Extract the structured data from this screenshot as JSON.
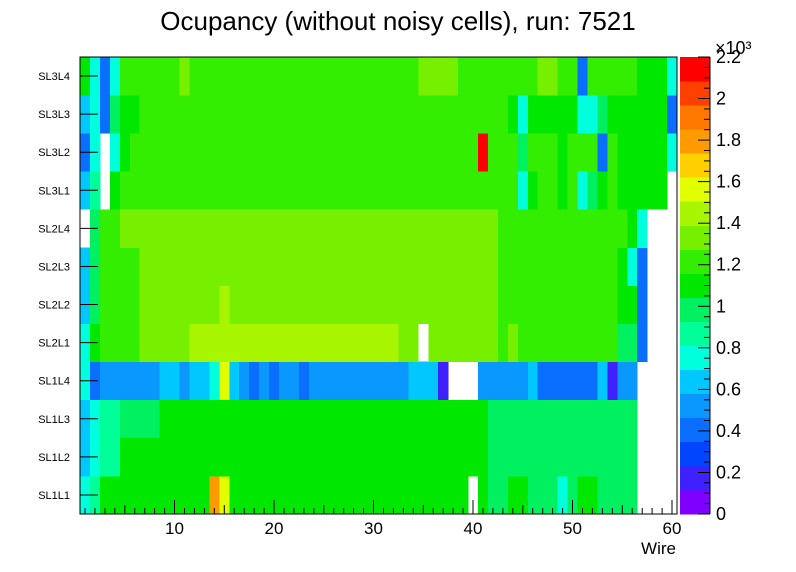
{
  "chart_data": {
    "type": "heatmap",
    "title": "Ocupancy (without noisy cells), run: 7521",
    "xlabel": "Wire",
    "ylabel": "",
    "x_range": [
      0.5,
      60.5
    ],
    "x_ticks": [
      "10",
      "20",
      "30",
      "40",
      "50",
      "60"
    ],
    "x_tick_values": [
      10,
      20,
      30,
      40,
      50,
      60
    ],
    "rows": [
      "SL1L1",
      "SL1L2",
      "SL1L3",
      "SL1L4",
      "SL2L1",
      "SL2L2",
      "SL2L3",
      "SL2L4",
      "SL3L1",
      "SL3L2",
      "SL3L3",
      "SL3L4"
    ],
    "z_range": [
      0,
      2.2
    ],
    "z_multiplier": "×10³",
    "z_ticks": [
      "0",
      "0.2",
      "0.4",
      "0.6",
      "0.8",
      "1",
      "1.2",
      "1.4",
      "1.6",
      "1.8",
      "2",
      "2.2"
    ],
    "z_tick_values": [
      0,
      0.2,
      0.4,
      0.6,
      0.8,
      1.0,
      1.2,
      1.4,
      1.6,
      1.8,
      2.0,
      2.2
    ],
    "palette": [
      "#7f00ff",
      "#3f20ff",
      "#0045ff",
      "#0a6fff",
      "#0a98ff",
      "#00c8ff",
      "#00ffdd",
      "#00ff98",
      "#00f060",
      "#00e800",
      "#33ee00",
      "#77f000",
      "#a8f500",
      "#e1ff00",
      "#ffd000",
      "#ff9b00",
      "#ff7800",
      "#ff4000",
      "#ff0000"
    ],
    "values": [
      [
        0.75,
        0.9,
        1.1,
        1.1,
        1.1,
        1.05,
        1.1,
        1.1,
        1.1,
        1.1,
        1.1,
        1.1,
        1.1,
        1.85,
        1.6,
        1.1,
        1.1,
        1.1,
        1.1,
        1.1,
        1.1,
        1.1,
        1.1,
        1.1,
        1.05,
        1.05,
        1.05,
        1.05,
        1.05,
        1.05,
        1.05,
        1.05,
        1.05,
        1.05,
        1.05,
        1.05,
        1.05,
        1.05,
        1.05,
        null,
        1.05,
        0.95,
        0.95,
        1.05,
        1.05,
        0.95,
        0.95,
        0.95,
        0.8,
        0.95,
        1.05,
        1.05,
        0.95,
        0.95,
        0.95,
        0.95,
        null,
        null,
        null,
        null
      ],
      [
        0.6,
        0.75,
        0.9,
        0.9,
        1.05,
        1.05,
        1.05,
        1.05,
        1.05,
        1.05,
        1.05,
        1.05,
        1.05,
        1.05,
        1.05,
        1.05,
        1.05,
        1.05,
        1.05,
        1.05,
        1.05,
        1.05,
        1.05,
        1.05,
        1.05,
        1.05,
        1.05,
        1.05,
        1.05,
        1.05,
        1.05,
        1.05,
        1.05,
        1.05,
        1.05,
        1.05,
        1.05,
        1.05,
        1.05,
        1.05,
        1.05,
        0.95,
        0.95,
        0.95,
        0.95,
        0.95,
        0.95,
        0.95,
        0.95,
        0.95,
        0.95,
        0.95,
        0.95,
        0.95,
        0.95,
        0.95,
        null,
        null,
        null,
        null
      ],
      [
        0.6,
        0.75,
        0.9,
        0.9,
        0.95,
        0.95,
        0.95,
        0.95,
        1.05,
        1.05,
        1.05,
        1.05,
        1.05,
        1.05,
        1.05,
        1.05,
        1.05,
        1.05,
        1.05,
        1.05,
        1.05,
        1.05,
        1.05,
        1.05,
        1.05,
        1.05,
        1.05,
        1.05,
        1.05,
        1.05,
        1.05,
        1.05,
        1.05,
        1.05,
        1.05,
        1.05,
        1.05,
        1.05,
        1.05,
        1.05,
        1.05,
        0.95,
        0.95,
        0.95,
        0.95,
        0.95,
        0.95,
        0.95,
        0.95,
        0.95,
        0.95,
        0.95,
        0.95,
        0.95,
        0.95,
        0.95,
        null,
        null,
        null,
        null
      ],
      [
        0.7,
        0.45,
        0.55,
        0.55,
        0.55,
        0.55,
        0.55,
        0.55,
        0.6,
        0.6,
        0.55,
        0.6,
        0.6,
        0.75,
        1.6,
        0.6,
        0.55,
        0.45,
        0.55,
        0.45,
        0.55,
        0.55,
        0.45,
        0.55,
        0.55,
        0.55,
        0.55,
        0.55,
        0.55,
        0.55,
        0.55,
        0.55,
        0.55,
        0.6,
        0.6,
        0.6,
        0.15,
        null,
        null,
        null,
        0.55,
        0.55,
        0.55,
        0.55,
        0.55,
        0.6,
        0.45,
        0.45,
        0.45,
        0.45,
        0.45,
        0.45,
        0.6,
        0.15,
        0.55,
        0.5,
        null,
        null,
        null,
        null
      ],
      [
        0.75,
        1.05,
        1.2,
        1.2,
        1.2,
        1.2,
        1.3,
        1.3,
        1.3,
        1.3,
        1.3,
        1.4,
        1.4,
        1.4,
        1.4,
        1.4,
        1.4,
        1.4,
        1.4,
        1.4,
        1.4,
        1.4,
        1.4,
        1.4,
        1.4,
        1.4,
        1.4,
        1.4,
        1.4,
        1.4,
        1.4,
        1.4,
        1.3,
        1.3,
        null,
        1.3,
        1.3,
        1.3,
        1.3,
        1.3,
        1.3,
        1.3,
        1.2,
        1.3,
        1.2,
        1.2,
        1.2,
        1.2,
        1.2,
        1.2,
        1.2,
        1.2,
        1.2,
        1.2,
        0.95,
        0.95,
        0.45,
        null,
        null,
        null
      ],
      [
        0.6,
        0.95,
        1.2,
        1.2,
        1.2,
        1.2,
        1.3,
        1.3,
        1.3,
        1.3,
        1.3,
        1.3,
        1.3,
        1.3,
        1.4,
        1.3,
        1.3,
        1.3,
        1.3,
        1.3,
        1.3,
        1.3,
        1.3,
        1.3,
        1.3,
        1.3,
        1.3,
        1.3,
        1.3,
        1.3,
        1.3,
        1.3,
        1.3,
        1.3,
        1.3,
        1.3,
        1.3,
        1.3,
        1.3,
        1.3,
        1.3,
        1.3,
        1.2,
        1.2,
        1.2,
        1.2,
        1.2,
        1.2,
        1.2,
        1.2,
        1.2,
        1.2,
        1.2,
        1.2,
        1.05,
        1.05,
        0.45,
        null,
        null,
        null
      ],
      [
        0.6,
        0.95,
        1.2,
        1.2,
        1.2,
        1.2,
        1.3,
        1.3,
        1.3,
        1.3,
        1.3,
        1.3,
        1.3,
        1.3,
        1.3,
        1.3,
        1.3,
        1.3,
        1.3,
        1.3,
        1.3,
        1.3,
        1.3,
        1.3,
        1.3,
        1.3,
        1.3,
        1.3,
        1.3,
        1.3,
        1.3,
        1.3,
        1.3,
        1.3,
        1.3,
        1.3,
        1.3,
        1.3,
        1.3,
        1.3,
        1.3,
        1.3,
        1.2,
        1.2,
        1.2,
        1.2,
        1.2,
        1.2,
        1.2,
        1.2,
        1.2,
        1.2,
        1.2,
        1.2,
        1.05,
        0.75,
        0.45,
        null,
        null,
        null
      ],
      [
        null,
        0.95,
        1.2,
        1.2,
        1.3,
        1.3,
        1.3,
        1.3,
        1.3,
        1.3,
        1.3,
        1.3,
        1.3,
        1.3,
        1.3,
        1.3,
        1.3,
        1.3,
        1.3,
        1.3,
        1.3,
        1.3,
        1.3,
        1.3,
        1.3,
        1.3,
        1.3,
        1.3,
        1.3,
        1.3,
        1.3,
        1.3,
        1.3,
        1.3,
        1.3,
        1.3,
        1.3,
        1.3,
        1.3,
        1.3,
        1.3,
        1.3,
        1.2,
        1.2,
        1.2,
        1.2,
        1.2,
        1.2,
        1.2,
        1.2,
        1.2,
        1.2,
        1.2,
        1.2,
        1.2,
        1.05,
        0.75,
        null,
        null,
        null
      ],
      [
        0.6,
        0.9,
        null,
        1.05,
        1.2,
        1.2,
        1.2,
        1.2,
        1.2,
        1.2,
        1.2,
        1.2,
        1.2,
        1.2,
        1.2,
        1.2,
        1.2,
        1.2,
        1.2,
        1.2,
        1.2,
        1.2,
        1.2,
        1.2,
        1.2,
        1.2,
        1.2,
        1.2,
        1.2,
        1.2,
        1.2,
        1.2,
        1.2,
        1.2,
        1.2,
        1.2,
        1.2,
        1.2,
        1.2,
        1.2,
        1.2,
        1.2,
        1.2,
        1.2,
        0.75,
        1.05,
        1.2,
        1.2,
        1.05,
        1.2,
        0.75,
        0.95,
        1.05,
        1.2,
        1.05,
        1.05,
        1.05,
        1.05,
        1.05,
        null
      ],
      [
        0.4,
        0.75,
        null,
        0.75,
        1.05,
        1.2,
        1.2,
        1.2,
        1.2,
        1.2,
        1.2,
        1.2,
        1.2,
        1.2,
        1.2,
        1.2,
        1.2,
        1.2,
        1.2,
        1.2,
        1.2,
        1.2,
        1.2,
        1.2,
        1.2,
        1.2,
        1.2,
        1.2,
        1.2,
        1.2,
        1.2,
        1.2,
        1.2,
        1.2,
        1.2,
        1.2,
        1.2,
        1.2,
        1.2,
        1.2,
        2.2,
        1.2,
        1.2,
        1.2,
        0.95,
        1.2,
        1.2,
        1.2,
        1.05,
        1.2,
        1.2,
        1.2,
        0.45,
        1.2,
        1.05,
        1.05,
        1.05,
        1.05,
        1.05,
        0.75
      ],
      [
        0.6,
        0.75,
        0.4,
        0.95,
        1.05,
        1.05,
        1.2,
        1.2,
        1.2,
        1.2,
        1.2,
        1.2,
        1.2,
        1.2,
        1.2,
        1.2,
        1.2,
        1.2,
        1.2,
        1.2,
        1.2,
        1.2,
        1.2,
        1.2,
        1.2,
        1.2,
        1.2,
        1.2,
        1.2,
        1.2,
        1.2,
        1.2,
        1.2,
        1.2,
        1.2,
        1.2,
        1.2,
        1.2,
        1.2,
        1.2,
        1.2,
        1.2,
        1.2,
        1.05,
        0.75,
        1.05,
        1.05,
        1.05,
        1.05,
        1.05,
        0.8,
        0.8,
        0.95,
        1.05,
        1.05,
        1.05,
        1.05,
        1.05,
        1.05,
        0.4
      ],
      [
        1.05,
        0.75,
        0.4,
        0.8,
        1.2,
        1.2,
        1.2,
        1.2,
        1.2,
        1.2,
        1.3,
        1.2,
        1.2,
        1.2,
        1.2,
        1.2,
        1.2,
        1.2,
        1.2,
        1.2,
        1.2,
        1.2,
        1.2,
        1.2,
        1.2,
        1.2,
        1.2,
        1.2,
        1.2,
        1.2,
        1.2,
        1.2,
        1.2,
        1.2,
        1.3,
        1.3,
        1.3,
        1.3,
        1.2,
        1.2,
        1.2,
        1.2,
        1.2,
        1.2,
        1.2,
        1.2,
        1.3,
        1.3,
        1.2,
        1.2,
        0.4,
        1.2,
        1.2,
        1.2,
        1.2,
        1.2,
        1.05,
        1.05,
        1.05,
        0.8
      ]
    ]
  }
}
